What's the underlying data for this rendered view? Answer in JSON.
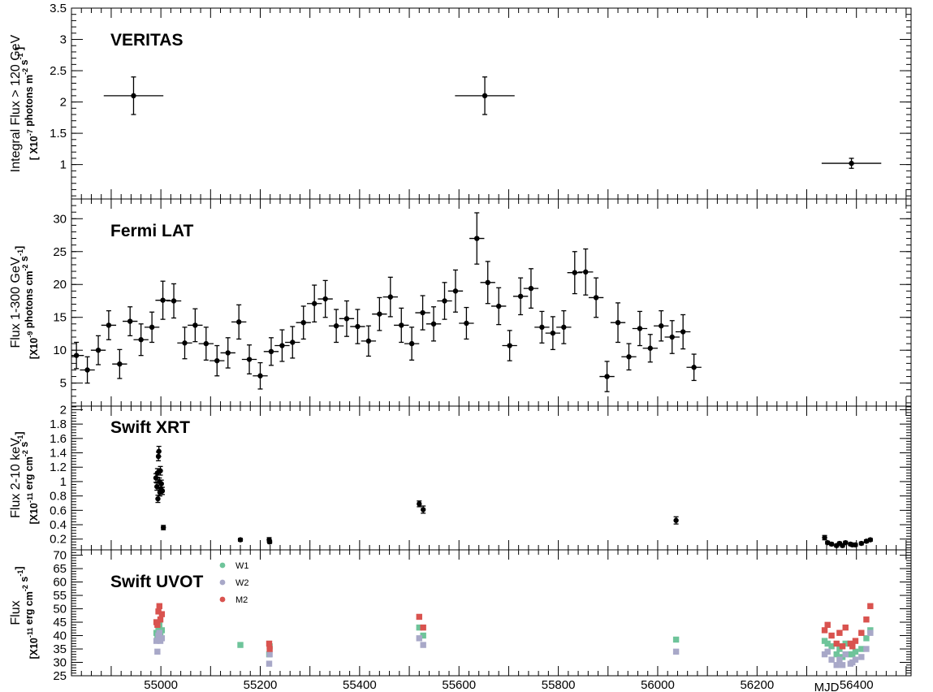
{
  "chart_data": [
    {
      "type": "scatter",
      "title": "VERITAS",
      "ylabel_main": "Integral Flux > 120 GeV",
      "ylabel_sub": "[ X10^-7 photons m^-2 s^-1 ]",
      "ylim": [
        0.45,
        3.5
      ],
      "yticks": [
        1,
        1.5,
        2,
        2.5,
        3,
        3.5
      ],
      "ytick_labels": [
        "1",
        "1.5",
        "2",
        "2.5",
        "3",
        "3.5"
      ],
      "series": [
        {
          "name": "",
          "color": "#000000",
          "points": [
            {
              "x": 54945,
              "y": 2.1,
              "xerr": 60,
              "yerr": 0.3
            },
            {
              "x": 55652,
              "y": 2.1,
              "xerr": 60,
              "yerr": 0.3
            },
            {
              "x": 56390,
              "y": 1.02,
              "xerr": 60,
              "yerr": 0.08
            }
          ]
        }
      ]
    },
    {
      "type": "scatter",
      "title": "Fermi LAT",
      "ylabel_main": "Flux 1-300 GeV",
      "ylabel_sub": "[X10^-9 photons cm^-2 s^-1]",
      "ylim": [
        1.5,
        33
      ],
      "yticks": [
        5,
        10,
        15,
        20,
        25,
        30
      ],
      "ytick_labels": [
        "5",
        "10",
        "15",
        "20",
        "25",
        "30"
      ],
      "series": [
        {
          "name": "",
          "color": "#000000",
          "xerr": 15,
          "points": [
            [
              54830,
              9.2,
              2
            ],
            [
              54852,
              7.0,
              2
            ],
            [
              54874,
              10.0,
              2.2
            ],
            [
              54895,
              13.8,
              2.2
            ],
            [
              54917,
              7.9,
              2.2
            ],
            [
              54938,
              14.4,
              2.2
            ],
            [
              54960,
              11.6,
              2.4
            ],
            [
              54982,
              13.5,
              2.3
            ],
            [
              55004,
              17.6,
              2.9
            ],
            [
              55026,
              17.5,
              2.6
            ],
            [
              55048,
              11.1,
              2.4
            ],
            [
              55069,
              13.8,
              2.5
            ],
            [
              55091,
              11.0,
              2.5
            ],
            [
              55113,
              8.4,
              2.3
            ],
            [
              55135,
              9.6,
              2.3
            ],
            [
              55157,
              14.3,
              2.6
            ],
            [
              55178,
              8.6,
              2.2
            ],
            [
              55200,
              6.1,
              2.0
            ],
            [
              55222,
              9.8,
              2.1
            ],
            [
              55244,
              10.7,
              2.4
            ],
            [
              55265,
              11.2,
              2.4
            ],
            [
              55287,
              14.2,
              2.5
            ],
            [
              55309,
              17.1,
              2.8
            ],
            [
              55331,
              17.8,
              2.8
            ],
            [
              55353,
              13.7,
              2.5
            ],
            [
              55374,
              14.8,
              2.7
            ],
            [
              55396,
              13.6,
              2.6
            ],
            [
              55418,
              11.4,
              2.3
            ],
            [
              55440,
              15.5,
              2.5
            ],
            [
              55462,
              18.1,
              3.0
            ],
            [
              55484,
              13.8,
              2.6
            ],
            [
              55505,
              11.0,
              2.5
            ],
            [
              55527,
              15.7,
              2.6
            ],
            [
              55549,
              14.0,
              2.6
            ],
            [
              55571,
              17.5,
              2.8
            ],
            [
              55593,
              19.0,
              3.2
            ],
            [
              55615,
              14.1,
              2.4
            ],
            [
              55636,
              27.0,
              3.9
            ],
            [
              55658,
              20.3,
              3.2
            ],
            [
              55680,
              16.7,
              2.8
            ],
            [
              55702,
              10.7,
              2.3
            ],
            [
              55724,
              18.2,
              2.8
            ],
            [
              55745,
              19.4,
              3.0
            ],
            [
              55767,
              13.5,
              2.4
            ],
            [
              55789,
              12.6,
              2.5
            ],
            [
              55811,
              13.5,
              2.5
            ],
            [
              55833,
              21.8,
              3.2
            ],
            [
              55855,
              21.9,
              3.5
            ],
            [
              55876,
              18.0,
              3.0
            ],
            [
              55898,
              6.0,
              2.3
            ],
            [
              55920,
              14.2,
              3.0
            ],
            [
              55942,
              9.0,
              2.0
            ],
            [
              55964,
              13.3,
              2.6
            ],
            [
              55985,
              10.3,
              2.1
            ],
            [
              56007,
              13.7,
              2.3
            ],
            [
              56029,
              12.0,
              2.5
            ],
            [
              56051,
              12.8,
              2.6
            ],
            [
              56073,
              7.4,
              2.0
            ]
          ]
        }
      ]
    },
    {
      "type": "scatter",
      "title": "Swift XRT",
      "ylabel_main": "Flux 2-10 keV",
      "ylabel_sub": "[X10^-11 erg cm^-2 s^-1]",
      "ylim": [
        0.05,
        2.05
      ],
      "yticks": [
        0.2,
        0.4,
        0.6,
        0.8,
        1,
        1.2,
        1.4,
        1.6,
        1.8,
        2
      ],
      "ytick_labels": [
        "0.2",
        "0.4",
        "0.6",
        "0.8",
        "1",
        "1.2",
        "1.4",
        "1.6",
        "1.8",
        "2"
      ],
      "series": [
        {
          "name": "",
          "color": "#000000",
          "points": [
            [
              54990,
              1.05,
              0.06
            ],
            [
              54992,
              0.93,
              0.05
            ],
            [
              54993,
              1.12,
              0.06
            ],
            [
              54994,
              0.76,
              0.05
            ],
            [
              54995,
              1.35,
              0.06
            ],
            [
              54996,
              1.42,
              0.07
            ],
            [
              54997,
              1.0,
              0.05
            ],
            [
              54998,
              0.85,
              0.05
            ],
            [
              54999,
              1.15,
              0.06
            ],
            [
              55000,
              0.9,
              0.05
            ],
            [
              55001,
              0.97,
              0.05
            ],
            [
              55003,
              0.87,
              0.05
            ],
            [
              55005,
              0.36,
              0.03
            ],
            [
              55160,
              0.19,
              0.02
            ],
            [
              55218,
              0.19,
              0.03
            ],
            [
              55219,
              0.16,
              0.02
            ],
            [
              55520,
              0.69,
              0.04
            ],
            [
              55528,
              0.61,
              0.05
            ],
            [
              56037,
              0.46,
              0.05
            ],
            [
              56336,
              0.22,
              0.03
            ],
            [
              56342,
              0.15,
              0.02
            ],
            [
              56350,
              0.13,
              0.02
            ],
            [
              56360,
              0.11,
              0.02
            ],
            [
              56366,
              0.14,
              0.02
            ],
            [
              56372,
              0.11,
              0.02
            ],
            [
              56378,
              0.15,
              0.02
            ],
            [
              56388,
              0.13,
              0.02
            ],
            [
              56392,
              0.12,
              0.02
            ],
            [
              56398,
              0.12,
              0.02
            ],
            [
              56410,
              0.14,
              0.02
            ],
            [
              56420,
              0.17,
              0.02
            ],
            [
              56428,
              0.19,
              0.02
            ]
          ]
        }
      ]
    },
    {
      "type": "scatter",
      "title": "Swift UVOT",
      "ylabel_main": "Flux",
      "ylabel_sub": "[X10^-11 erg cm^-2 s^-1]",
      "ylim": [
        25,
        72
      ],
      "yticks": [
        25,
        30,
        35,
        40,
        45,
        50,
        55,
        60,
        65,
        70
      ],
      "ytick_labels": [
        "25",
        "30",
        "35",
        "40",
        "45",
        "50",
        "55",
        "60",
        "65",
        "70"
      ],
      "legend": [
        "W1",
        "W2",
        "M2"
      ],
      "series": [
        {
          "name": "W1",
          "color": "#6ec49a",
          "points": [
            [
              54991,
              41
            ],
            [
              54993,
              39
            ],
            [
              54995,
              43
            ],
            [
              54997,
              44
            ],
            [
              54999,
              40
            ],
            [
              55002,
              42
            ],
            [
              55160,
              36.5
            ],
            [
              55218,
              33
            ],
            [
              55219,
              36
            ],
            [
              55520,
              43
            ],
            [
              55528,
              40
            ],
            [
              56037,
              38.5
            ],
            [
              56336,
              38
            ],
            [
              56342,
              37
            ],
            [
              56350,
              36
            ],
            [
              56360,
              33
            ],
            [
              56366,
              35
            ],
            [
              56372,
              32
            ],
            [
              56378,
              37
            ],
            [
              56388,
              33
            ],
            [
              56392,
              33
            ],
            [
              56398,
              34
            ],
            [
              56410,
              35
            ],
            [
              56420,
              39
            ],
            [
              56428,
              42
            ]
          ]
        },
        {
          "name": "W2",
          "color": "#a8a8c8",
          "points": [
            [
              54991,
              38
            ],
            [
              54993,
              34
            ],
            [
              54995,
              40
            ],
            [
              54997,
              41
            ],
            [
              54999,
              38
            ],
            [
              55002,
              39
            ],
            [
              55218,
              29.5
            ],
            [
              55219,
              33
            ],
            [
              55520,
              39
            ],
            [
              55528,
              36.5
            ],
            [
              56037,
              34
            ],
            [
              56336,
              33
            ],
            [
              56342,
              34
            ],
            [
              56350,
              31
            ],
            [
              56360,
              29
            ],
            [
              56366,
              31
            ],
            [
              56372,
              29
            ],
            [
              56378,
              33
            ],
            [
              56388,
              29.5
            ],
            [
              56392,
              30
            ],
            [
              56398,
              31
            ],
            [
              56410,
              32
            ],
            [
              56420,
              35
            ],
            [
              56428,
              41
            ]
          ]
        },
        {
          "name": "M2",
          "color": "#d9534f",
          "points": [
            [
              54991,
              45
            ],
            [
              54993,
              44
            ],
            [
              54995,
              49
            ],
            [
              54997,
              51
            ],
            [
              54999,
              46
            ],
            [
              55002,
              48
            ],
            [
              55218,
              37
            ],
            [
              55219,
              35
            ],
            [
              55520,
              47
            ],
            [
              55528,
              43
            ],
            [
              56336,
              42
            ],
            [
              56342,
              44
            ],
            [
              56350,
              40
            ],
            [
              56360,
              37
            ],
            [
              56366,
              41
            ],
            [
              56372,
              36
            ],
            [
              56378,
              43
            ],
            [
              56388,
              37
            ],
            [
              56392,
              36
            ],
            [
              56398,
              38
            ],
            [
              56410,
              41
            ],
            [
              56420,
              46
            ],
            [
              56428,
              51
            ]
          ]
        }
      ]
    }
  ],
  "xaxis": {
    "label": "MJD",
    "xlim": [
      54820,
      56510
    ],
    "ticks": [
      55000,
      55200,
      55400,
      55600,
      55800,
      56000,
      56200,
      56400
    ],
    "tick_labels": [
      "55000",
      "55200",
      "55400",
      "55600",
      "55800",
      "56000",
      "56200",
      "56400"
    ]
  }
}
